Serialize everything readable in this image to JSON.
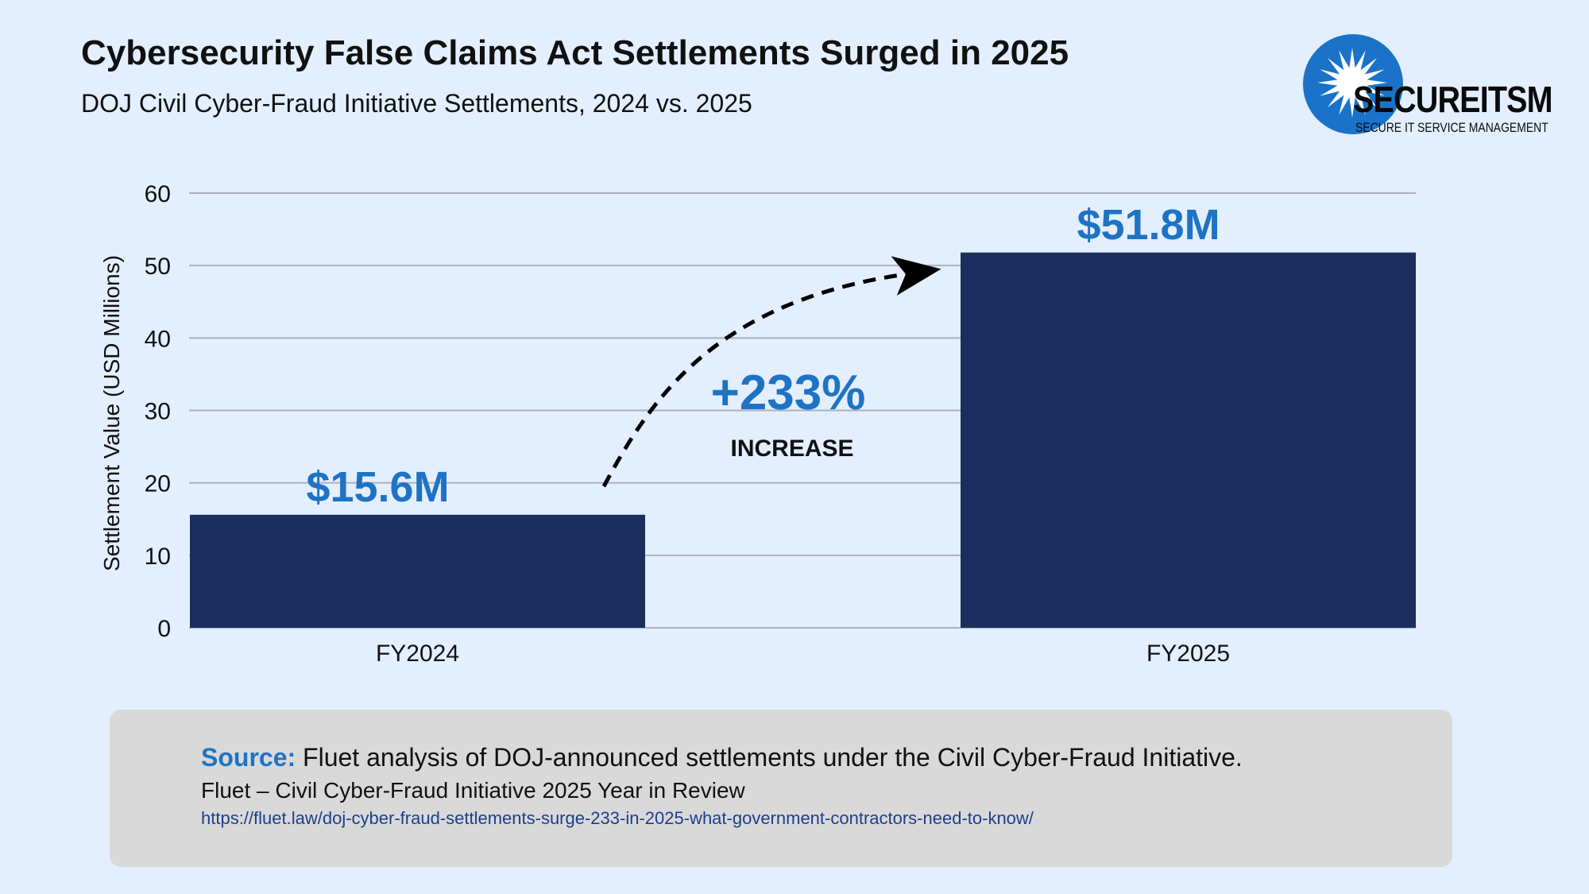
{
  "header": {
    "title": "Cybersecurity False Claims Act Settlements Surged in 2025",
    "subtitle": "DOJ Civil Cyber-Fraud Initiative Settlements, 2024 vs. 2025"
  },
  "logo": {
    "wordmark": "SECUREITSM",
    "tagline": "SECURE IT SERVICE MANAGEMENT",
    "icon": "starburst-icon"
  },
  "chart_data": {
    "type": "bar",
    "title": "Cybersecurity False Claims Act Settlements Surged in 2025",
    "subtitle": "DOJ Civil Cyber-Fraud Initiative Settlements, 2024 vs. 2025",
    "categories": [
      "FY2024",
      "FY2025"
    ],
    "values": [
      15.6,
      51.8
    ],
    "data_labels": [
      "$15.6M",
      "$51.8M"
    ],
    "xlabel": "",
    "ylabel": "Settlement Value (USD Millions)",
    "ylim": [
      0,
      60
    ],
    "yticks": [
      0,
      10,
      20,
      30,
      40,
      50,
      60
    ],
    "grid": true,
    "legend": "none",
    "annotation": {
      "value": "+233%",
      "text": "INCREASE"
    },
    "colors": {
      "bar": "#1b2f5e",
      "data_label": "#1f73c4",
      "annotation": "#1f73c4",
      "grid": "#a9b2bd"
    }
  },
  "source": {
    "label": "Source:",
    "text": "Fluet analysis of DOJ-announced settlements under the Civil Cyber-Fraud Initiative.",
    "line2": "Fluet – Civil Cyber-Fraud Initiative 2025 Year in Review",
    "url": "https://fluet.law/doj-cyber-fraud-settlements-surge-233-in-2025-what-government-contractors-need-to-know/"
  }
}
